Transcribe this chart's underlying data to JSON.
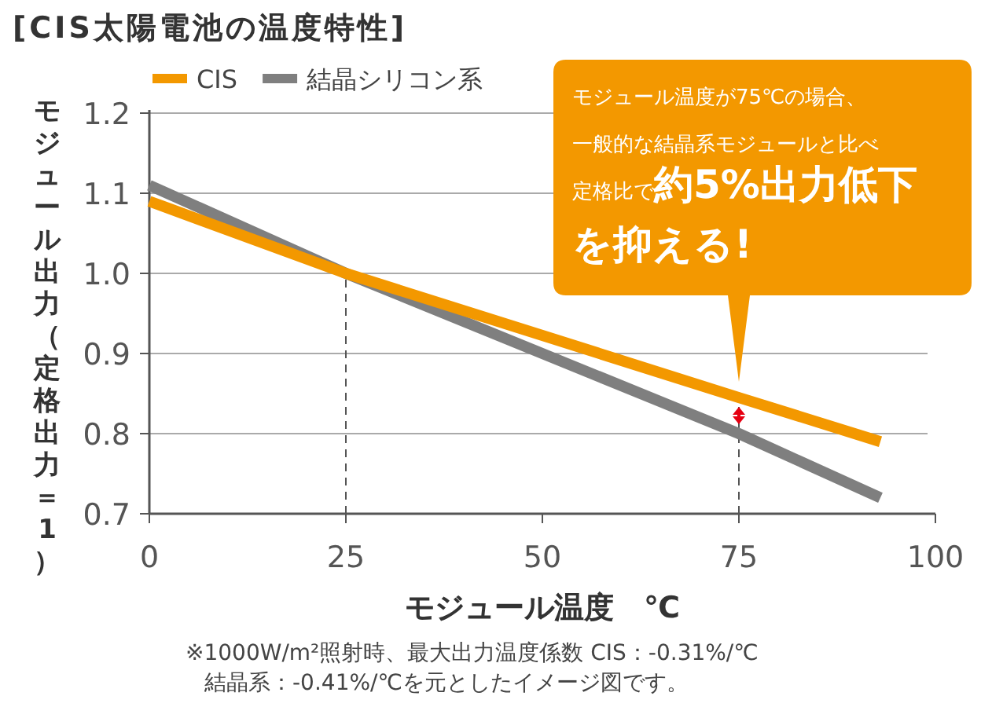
{
  "chart_data": {
    "type": "line",
    "title": "[CIS太陽電池の温度特性]",
    "xlabel": "モジュール温度　℃",
    "ylabel": "モジュール出力（定格出力＝1）",
    "series": [
      {
        "name": "CIS",
        "color": "#f39800",
        "x": [
          0,
          25,
          75,
          93
        ],
        "values": [
          1.09,
          1.0,
          0.845,
          0.79
        ]
      },
      {
        "name": "結晶シリコン系",
        "color": "#7f7f7f",
        "x": [
          0,
          25,
          75,
          93
        ],
        "values": [
          1.11,
          1.0,
          0.8,
          0.72
        ]
      }
    ],
    "xlim": [
      0,
      100
    ],
    "ylim": [
      0.7,
      1.2
    ],
    "xticks": [
      0,
      25,
      50,
      75,
      100
    ],
    "yticks": [
      0.7,
      0.8,
      0.9,
      {
        "value": 1,
        "label": "1.0"
      },
      1.1,
      1.2
    ],
    "grid": "y",
    "legend": "top left",
    "marker": "none",
    "line_style": "solid",
    "ref_lines": [
      {
        "axis": "x",
        "value": 25,
        "line_style": "dashed",
        "color": "#555555"
      },
      {
        "axis": "x",
        "value": 75,
        "line_style": "dashed",
        "color": "#555555"
      }
    ],
    "annotations": [
      "モジュール温度が75℃の場合、一般的な結晶系モジュールと比べ定格比で",
      "約5%出力低下を抑える!",
      "※1000W/m²照射時、最大出力温度係数 CIS：-0.31%/℃",
      "結晶系：-0.41%/℃を元としたイメージ図です。"
    ]
  }
}
